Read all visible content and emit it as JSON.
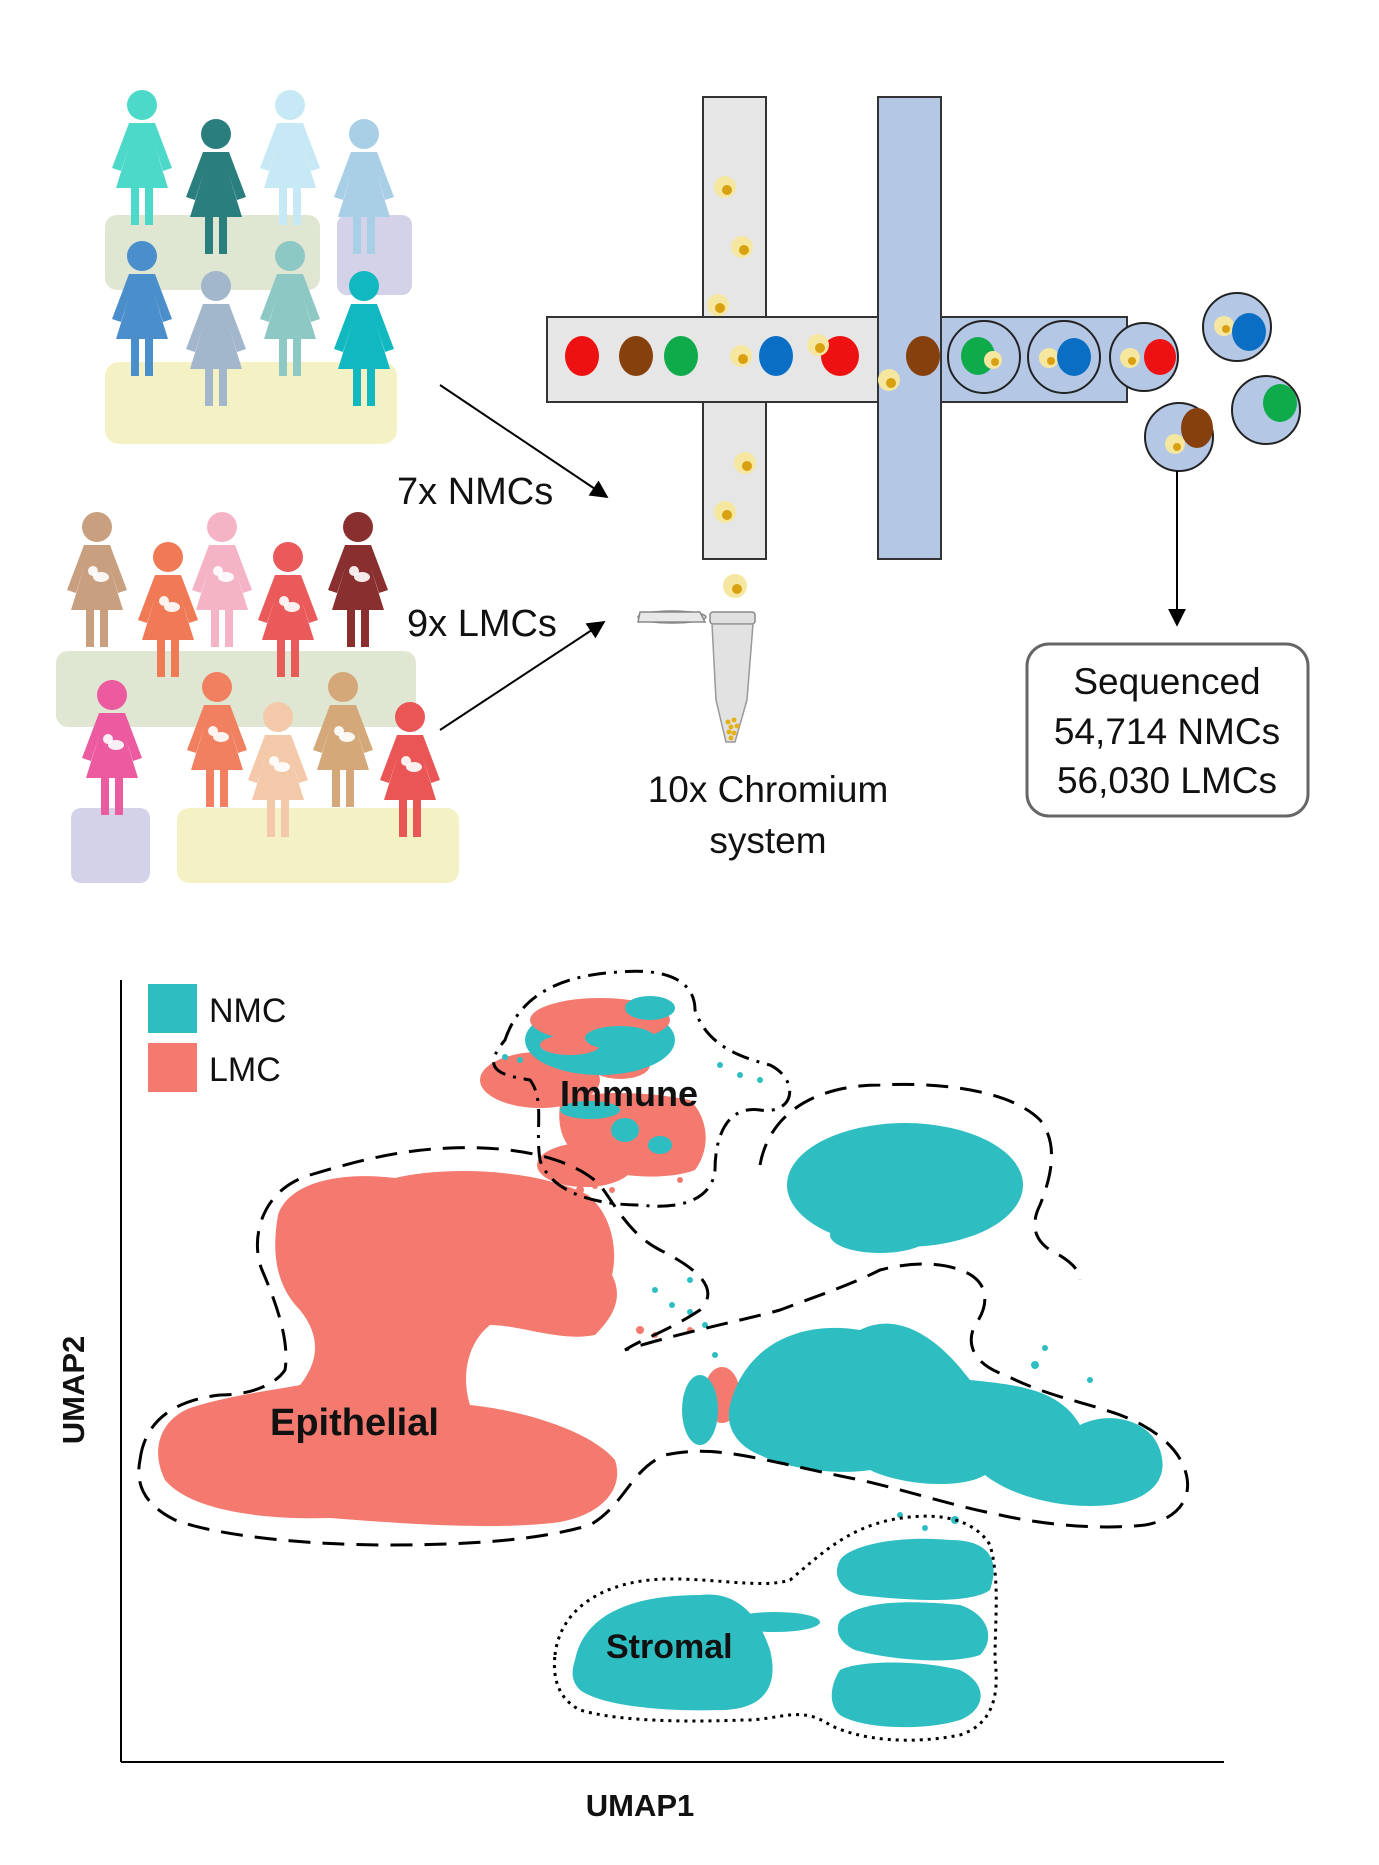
{
  "workflow": {
    "nmc_arrow_label": "7x NMCs",
    "lmc_arrow_label": "9x LMCs",
    "chromium_label_line1": "10x Chromium",
    "chromium_label_line2": "system",
    "sequenced_title": "Sequenced",
    "sequenced_nmc": "54,714 NMCs",
    "sequenced_lmc": "56,030 LMCs",
    "nmc_donor_colors": [
      "#4dd9c9",
      "#2a7e7e",
      "#c6e9f5",
      "#a9cfe6",
      "#4a8fcb",
      "#a2b6cc",
      "#8ec8c4",
      "#12b8c0"
    ],
    "lmc_donor_colors": [
      "#c8a080",
      "#ef7a55",
      "#f5b3c6",
      "#ea5a5a",
      "#8a2f2f",
      "#ec5aa0",
      "#f08060",
      "#f3c9aa",
      "#d4a878",
      "#ea5555"
    ],
    "bead_colors": {
      "red": "#ee1111",
      "brown": "#86400e",
      "green": "#0faa4a",
      "blue": "#0a6ec4"
    }
  },
  "umap": {
    "xlabel": "UMAP1",
    "ylabel": "UMAP2",
    "legend": [
      {
        "label": "NMC",
        "color": "#2ebec2"
      },
      {
        "label": "LMC",
        "color": "#f47a6f"
      }
    ],
    "clusters": [
      {
        "label": "Immune",
        "border": "dash-dot"
      },
      {
        "label": "Epithelial",
        "border": "dashed"
      },
      {
        "label": "Stromal",
        "border": "dotted"
      }
    ]
  }
}
